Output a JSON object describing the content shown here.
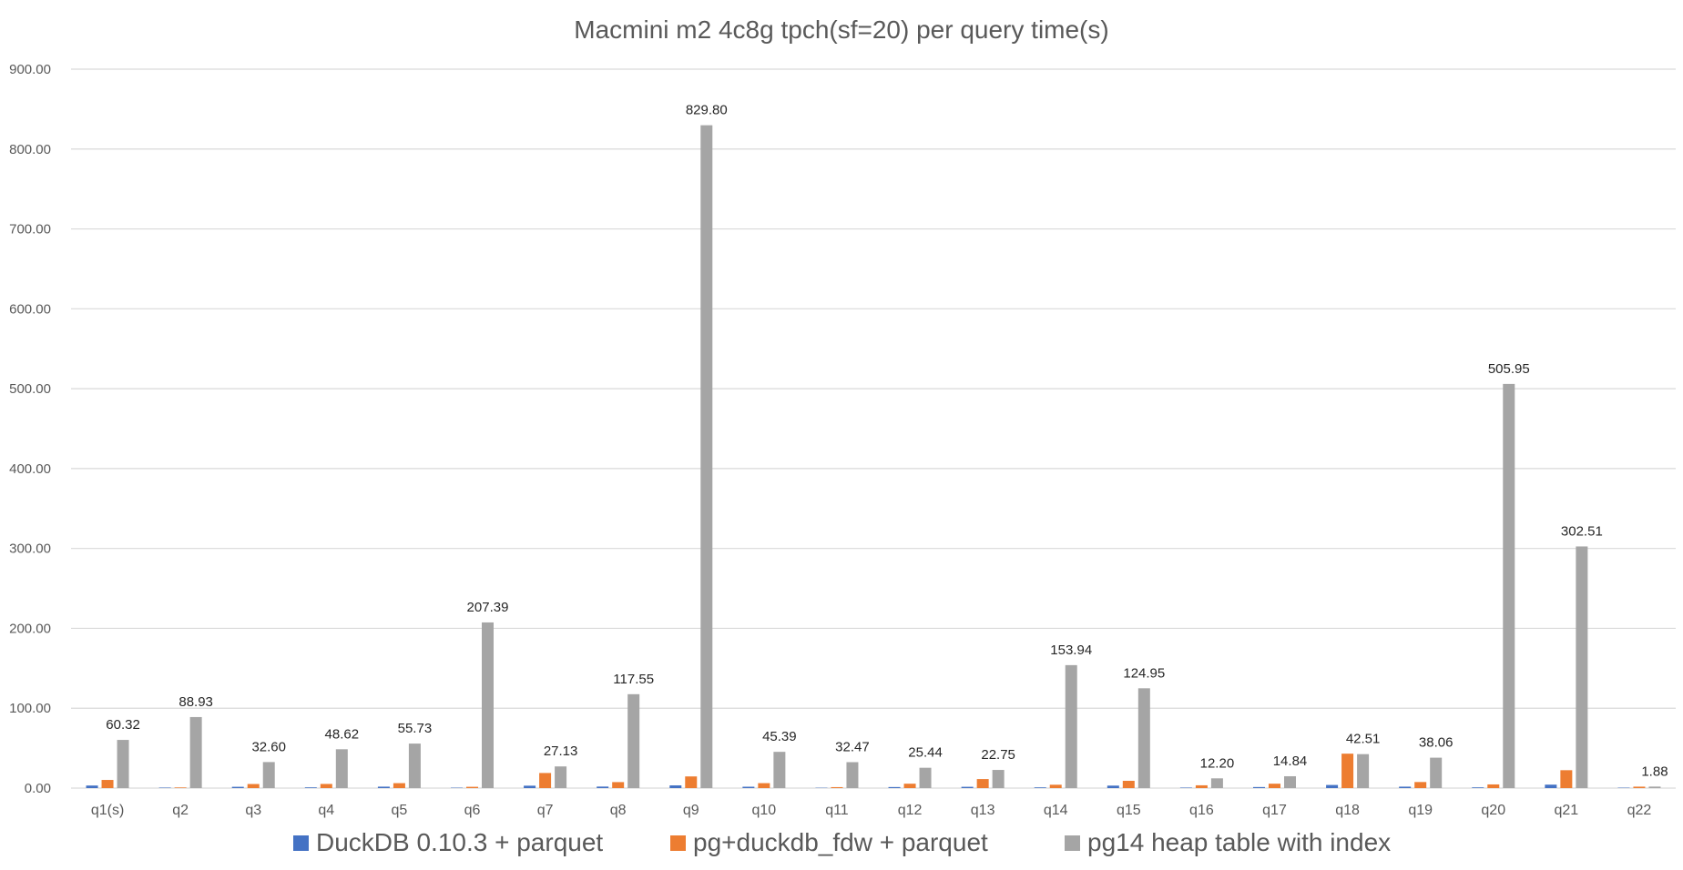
{
  "chart_data": {
    "type": "bar",
    "title": "Macmini m2 4c8g tpch(sf=20) per query time(s)",
    "xlabel": "",
    "ylabel": "",
    "ylim": [
      0,
      900
    ],
    "yticks": [
      "0.00",
      "100.00",
      "200.00",
      "300.00",
      "400.00",
      "500.00",
      "600.00",
      "700.00",
      "800.00",
      "900.00"
    ],
    "grid": true,
    "legend_position": "bottom",
    "categories": [
      "q1(s)",
      "q2",
      "q3",
      "q4",
      "q5",
      "q6",
      "q7",
      "q8",
      "q9",
      "q10",
      "q11",
      "q12",
      "q13",
      "q14",
      "q15",
      "q16",
      "q17",
      "q18",
      "q19",
      "q20",
      "q21",
      "q22"
    ],
    "series": [
      {
        "name": "DuckDB 0.10.3 + parquet",
        "color": "#4472C4",
        "values": [
          3.2,
          0.6,
          1.6,
          0.9,
          1.8,
          0.5,
          3.0,
          1.9,
          3.4,
          1.7,
          0.4,
          1.3,
          1.6,
          0.9,
          3.1,
          0.6,
          1.3,
          3.9,
          1.8,
          0.9,
          4.3,
          0.5
        ],
        "labels": [
          "",
          "",
          "",
          "",
          "",
          "",
          "",
          "",
          "",
          "",
          "",
          "",
          "",
          "",
          "",
          "",
          "",
          "",
          "",
          "",
          "",
          ""
        ]
      },
      {
        "name": "pg+duckdb_fdw + parquet",
        "color": "#ED7D31",
        "values": [
          10.2,
          0.8,
          5.1,
          5.2,
          6.2,
          1.6,
          18.9,
          7.5,
          14.6,
          6.2,
          1.2,
          5.5,
          11.3,
          4.2,
          9.1,
          3.5,
          5.5,
          43.1,
          7.6,
          4.6,
          22.4,
          1.8
        ],
        "labels": [
          "",
          "",
          "",
          "",
          "",
          "",
          "",
          "",
          "",
          "",
          "",
          "",
          "",
          "",
          "",
          "",
          "",
          "",
          "",
          "",
          "",
          ""
        ]
      },
      {
        "name": "pg14 heap table with index",
        "color": "#A5A5A5",
        "values": [
          60.32,
          88.93,
          32.6,
          48.62,
          55.73,
          207.39,
          27.13,
          117.55,
          829.8,
          45.39,
          32.47,
          25.44,
          22.75,
          153.94,
          124.95,
          12.2,
          14.84,
          42.51,
          38.06,
          505.95,
          302.51,
          1.88
        ],
        "labels": [
          "60.32",
          "88.93",
          "32.60",
          "48.62",
          "55.73",
          "207.39",
          "27.13",
          "117.55",
          "829.80",
          "45.39",
          "32.47",
          "25.44",
          "22.75",
          "153.94",
          "124.95",
          "12.20",
          "14.84",
          "42.51",
          "38.06",
          "505.95",
          "302.51",
          "1.88"
        ]
      }
    ]
  }
}
